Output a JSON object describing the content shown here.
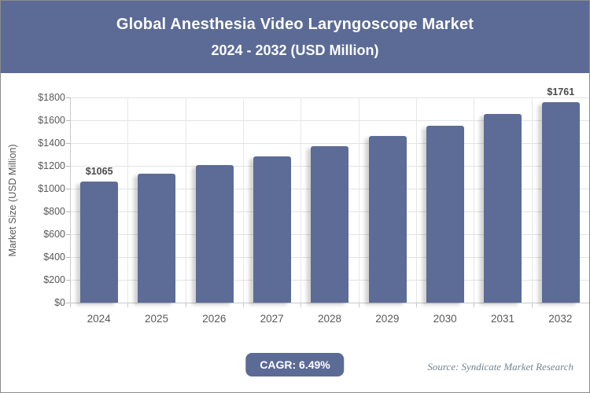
{
  "header": {
    "title_line1": "Global Anesthesia Video Laryngoscope Market",
    "title_line2": "2024 - 2032 (USD Million)",
    "bg_color": "#5b6b95",
    "text_color": "#fdfdfd"
  },
  "chart_data": {
    "type": "bar",
    "title": "Global Anesthesia Video Laryngoscope Market 2024 - 2032 (USD Million)",
    "categories": [
      "2024",
      "2025",
      "2026",
      "2027",
      "2028",
      "2029",
      "2030",
      "2031",
      "2032"
    ],
    "values": [
      1065,
      1134,
      1208,
      1286,
      1370,
      1459,
      1553,
      1654,
      1761
    ],
    "data_labels": {
      "2024": "$1065",
      "2032": "$1761"
    },
    "xlabel": "",
    "ylabel": "Market Size (USD Million)",
    "ylim": [
      0,
      1800
    ],
    "ytick_step": 200,
    "ytick_prefix": "$",
    "grid": true,
    "legend_position": "none",
    "bar_color": "#5c6c96"
  },
  "footer": {
    "cagr_label": "CAGR: 6.49%",
    "source": "Source: Syndicate Market Research"
  }
}
